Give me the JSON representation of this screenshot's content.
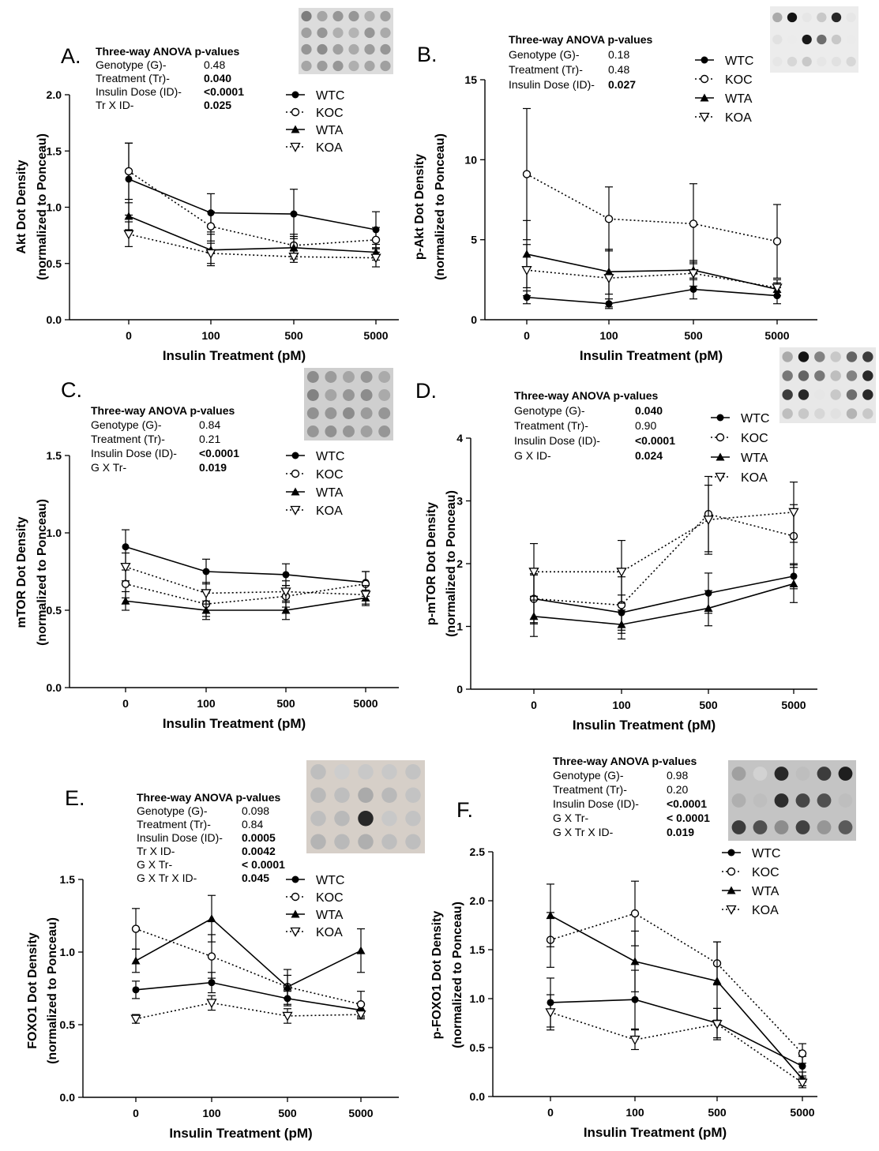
{
  "panels": [
    {
      "letter": "A.",
      "stats": {
        "title": "Three-way ANOVA p-values",
        "rows": [
          {
            "label": "Genotype (G)-",
            "value": "0.48",
            "bold": false
          },
          {
            "label": "Treatment (Tr)-",
            "value": "0.040",
            "bold": true
          },
          {
            "label": "Insulin Dose (ID)-",
            "value": "<0.0001",
            "bold": true
          },
          {
            "label": "Tr X ID-",
            "value": "0.025",
            "bold": true
          }
        ]
      },
      "blot": {
        "style": "light"
      }
    },
    {
      "letter": "B.",
      "stats": {
        "title": "Three-way ANOVA p-values",
        "rows": [
          {
            "label": "Genotype (G)-",
            "value": "0.18",
            "bold": false
          },
          {
            "label": "Treatment (Tr)-",
            "value": "0.48",
            "bold": false
          },
          {
            "label": "Insulin Dose (ID)-",
            "value": "0.027",
            "bold": true
          }
        ]
      },
      "blot": {
        "style": "sparse"
      }
    },
    {
      "letter": "C.",
      "stats": {
        "title": "Three-way ANOVA p-values",
        "rows": [
          {
            "label": "Genotype (G)-",
            "value": "0.84",
            "bold": false
          },
          {
            "label": "Treatment (Tr)-",
            "value": "0.21",
            "bold": false
          },
          {
            "label": "Insulin Dose (ID)-",
            "value": "<0.0001",
            "bold": true
          },
          {
            "label": "G X Tr-",
            "value": "0.019",
            "bold": true
          }
        ]
      },
      "blot": {
        "style": "medium"
      }
    },
    {
      "letter": "D.",
      "stats": {
        "title": "Three-way ANOVA p-values",
        "rows": [
          {
            "label": "Genotype (G)-",
            "value": "0.040",
            "bold": true
          },
          {
            "label": "Treatment (Tr)-",
            "value": "0.90",
            "bold": false
          },
          {
            "label": "Insulin Dose (ID)-",
            "value": "<0.0001",
            "bold": true
          },
          {
            "label": "G X ID-",
            "value": "0.024",
            "bold": true
          }
        ]
      },
      "blot": {
        "style": "dark"
      }
    },
    {
      "letter": "E.",
      "stats": {
        "title": "Three-way ANOVA p-values",
        "rows": [
          {
            "label": "Genotype (G)-",
            "value": "0.098",
            "bold": false
          },
          {
            "label": "Treatment (Tr)-",
            "value": "0.84",
            "bold": false
          },
          {
            "label": "Insulin Dose (ID)-",
            "value": "0.0005",
            "bold": true
          },
          {
            "label": "Tr X ID-",
            "value": "0.0042",
            "bold": true
          },
          {
            "label": "G X Tr-",
            "value": "< 0.0001",
            "bold": true
          },
          {
            "label": "G X Tr X ID-",
            "value": "0.045",
            "bold": true
          }
        ]
      },
      "blot": {
        "style": "pale"
      }
    },
    {
      "letter": "F.",
      "stats": {
        "title": "Three-way ANOVA p-values",
        "rows": [
          {
            "label": "Genotype (G)-",
            "value": "0.98",
            "bold": false
          },
          {
            "label": "Treatment (Tr)-",
            "value": "0.20",
            "bold": false
          },
          {
            "label": "Insulin Dose (ID)-",
            "value": "<0.0001",
            "bold": true
          },
          {
            "label": "G X Tr-",
            "value": "< 0.0001",
            "bold": true
          },
          {
            "label": "G X Tr X ID-",
            "value": "0.019",
            "bold": true
          }
        ]
      },
      "blot": {
        "style": "grey"
      }
    }
  ],
  "chart_data": [
    {
      "type": "line",
      "categories": [
        "0",
        "100",
        "500",
        "5000"
      ],
      "xlabel": "Insulin Treatment (pM)",
      "ylabel": [
        "Akt Dot Density",
        "(normalized to Ponceau)"
      ],
      "ylim": [
        0,
        2.0
      ],
      "yticks": [
        "0.0",
        "0.5",
        "1.0",
        "1.5",
        "2.0"
      ],
      "series": [
        {
          "name": "WTC",
          "marker": "filled-circle",
          "line": "solid",
          "values": [
            1.25,
            0.95,
            0.94,
            0.8
          ],
          "err": [
            0.32,
            0.17,
            0.22,
            0.16
          ]
        },
        {
          "name": "KOC",
          "marker": "open-circle",
          "line": "dotted",
          "values": [
            1.32,
            0.83,
            0.66,
            0.71
          ],
          "err": [
            0.25,
            0.13,
            0.1,
            0.11
          ]
        },
        {
          "name": "WTA",
          "marker": "filled-triangle",
          "line": "solid",
          "values": [
            0.92,
            0.62,
            0.64,
            0.6
          ],
          "err": [
            0.12,
            0.14,
            0.1,
            0.07
          ]
        },
        {
          "name": "KOA",
          "marker": "open-triangle-down",
          "line": "dotted",
          "values": [
            0.76,
            0.59,
            0.56,
            0.55
          ],
          "err": [
            0.11,
            0.09,
            0.05,
            0.08
          ]
        }
      ]
    },
    {
      "type": "line",
      "categories": [
        "0",
        "100",
        "500",
        "5000"
      ],
      "xlabel": "Insulin Treatment (pM)",
      "ylabel": [
        "p-Akt Dot Density",
        "(normalized to Ponceau)"
      ],
      "ylim": [
        0,
        15
      ],
      "yticks": [
        "0",
        "5",
        "10",
        "15"
      ],
      "series": [
        {
          "name": "WTC",
          "marker": "filled-circle",
          "line": "solid",
          "values": [
            1.4,
            1.0,
            1.9,
            1.5
          ],
          "err": [
            0.4,
            0.3,
            0.6,
            0.5
          ]
        },
        {
          "name": "KOC",
          "marker": "open-circle",
          "line": "dotted",
          "values": [
            9.1,
            6.3,
            6.0,
            4.9
          ],
          "err": [
            4.1,
            2.0,
            2.5,
            2.3
          ]
        },
        {
          "name": "WTA",
          "marker": "filled-triangle",
          "line": "solid",
          "values": [
            4.1,
            3.0,
            3.1,
            1.9
          ],
          "err": [
            2.1,
            1.4,
            0.5,
            0.4
          ]
        },
        {
          "name": "KOA",
          "marker": "open-triangle-down",
          "line": "dotted",
          "values": [
            3.1,
            2.6,
            2.9,
            2.0
          ],
          "err": [
            1.6,
            1.8,
            0.8,
            0.5
          ]
        }
      ]
    },
    {
      "type": "line",
      "categories": [
        "0",
        "100",
        "500",
        "5000"
      ],
      "xlabel": "Insulin Treatment (pM)",
      "ylabel": [
        "mTOR Dot Density",
        "(normalized to Ponceau)"
      ],
      "ylim": [
        0,
        1.5
      ],
      "yticks": [
        "0.0",
        "0.5",
        "1.0",
        "1.5"
      ],
      "series": [
        {
          "name": "WTC",
          "marker": "filled-circle",
          "line": "solid",
          "values": [
            0.91,
            0.75,
            0.73,
            0.68
          ],
          "err": [
            0.11,
            0.08,
            0.07,
            0.07
          ]
        },
        {
          "name": "KOC",
          "marker": "open-circle",
          "line": "dotted",
          "values": [
            0.67,
            0.54,
            0.59,
            0.67
          ],
          "err": [
            0.09,
            0.08,
            0.07,
            0.08
          ]
        },
        {
          "name": "WTA",
          "marker": "filled-triangle",
          "line": "solid",
          "values": [
            0.56,
            0.5,
            0.5,
            0.58
          ],
          "err": [
            0.06,
            0.06,
            0.06,
            0.05
          ]
        },
        {
          "name": "KOA",
          "marker": "open-triangle-down",
          "line": "dotted",
          "values": [
            0.78,
            0.61,
            0.62,
            0.6
          ],
          "err": [
            0.09,
            0.07,
            0.07,
            0.06
          ]
        }
      ]
    },
    {
      "type": "line",
      "categories": [
        "0",
        "100",
        "500",
        "5000"
      ],
      "xlabel": "Insulin Treatment (pM)",
      "ylabel": [
        "p-mTOR Dot Density",
        "(normalized to Ponceau)"
      ],
      "ylim": [
        0,
        4
      ],
      "yticks": [
        "0",
        "1",
        "2",
        "3",
        "4"
      ],
      "series": [
        {
          "name": "WTC",
          "marker": "filled-circle",
          "line": "solid",
          "values": [
            1.44,
            1.22,
            1.53,
            1.8
          ],
          "err": [
            0.38,
            0.28,
            0.32,
            0.2
          ]
        },
        {
          "name": "KOC",
          "marker": "open-circle",
          "line": "dotted",
          "values": [
            1.44,
            1.34,
            2.79,
            2.44
          ],
          "err": [
            0.4,
            0.45,
            0.6,
            0.5
          ]
        },
        {
          "name": "WTA",
          "marker": "filled-triangle",
          "line": "solid",
          "values": [
            1.16,
            1.03,
            1.29,
            1.68
          ],
          "err": [
            0.32,
            0.23,
            0.28,
            0.3
          ]
        },
        {
          "name": "KOA",
          "marker": "open-triangle-down",
          "line": "dotted",
          "values": [
            1.87,
            1.87,
            2.7,
            2.82
          ],
          "err": [
            0.45,
            0.5,
            0.55,
            0.48
          ]
        }
      ]
    },
    {
      "type": "line",
      "categories": [
        "0",
        "100",
        "500",
        "5000"
      ],
      "xlabel": "Insulin Treatment (pM)",
      "ylabel": [
        "FOXO1 Dot Density",
        "(normalized to Ponceau)"
      ],
      "ylim": [
        0,
        1.5
      ],
      "yticks": [
        "0.0",
        "0.5",
        "1.0",
        "1.5"
      ],
      "series": [
        {
          "name": "WTC",
          "marker": "filled-circle",
          "line": "solid",
          "values": [
            0.74,
            0.79,
            0.68,
            0.6
          ],
          "err": [
            0.06,
            0.07,
            0.05,
            0.04
          ]
        },
        {
          "name": "KOC",
          "marker": "open-circle",
          "line": "dotted",
          "values": [
            1.16,
            0.97,
            0.76,
            0.64
          ],
          "err": [
            0.14,
            0.15,
            0.08,
            0.09
          ]
        },
        {
          "name": "WTA",
          "marker": "filled-triangle",
          "line": "solid",
          "values": [
            0.94,
            1.23,
            0.76,
            1.01
          ],
          "err": [
            0.08,
            0.16,
            0.12,
            0.15
          ]
        },
        {
          "name": "KOA",
          "marker": "open-triangle-down",
          "line": "dotted",
          "values": [
            0.54,
            0.65,
            0.56,
            0.57
          ],
          "err": [
            0.03,
            0.05,
            0.05,
            0.03
          ]
        }
      ]
    },
    {
      "type": "line",
      "categories": [
        "0",
        "100",
        "500",
        "5000"
      ],
      "xlabel": "Insulin Treatment (pM)",
      "ylabel": [
        "p-FOXO1 Dot Density",
        "(normalized to Ponceau)"
      ],
      "ylim": [
        0,
        2.5
      ],
      "yticks": [
        "0.0",
        "0.5",
        "1.0",
        "1.5",
        "2.0",
        "2.5"
      ],
      "series": [
        {
          "name": "WTC",
          "marker": "filled-circle",
          "line": "solid",
          "values": [
            0.96,
            0.99,
            0.75,
            0.31
          ],
          "err": [
            0.25,
            0.3,
            0.15,
            0.1
          ]
        },
        {
          "name": "KOC",
          "marker": "open-circle",
          "line": "dotted",
          "values": [
            1.6,
            1.87,
            1.36,
            0.44
          ],
          "err": [
            0.28,
            0.33,
            0.22,
            0.1
          ]
        },
        {
          "name": "WTA",
          "marker": "filled-triangle",
          "line": "solid",
          "values": [
            1.85,
            1.38,
            1.18,
            0.18
          ],
          "err": [
            0.32,
            0.31,
            0.4,
            0.07
          ]
        },
        {
          "name": "KOA",
          "marker": "open-triangle-down",
          "line": "dotted",
          "values": [
            0.86,
            0.58,
            0.74,
            0.14
          ],
          "err": [
            0.18,
            0.1,
            0.16,
            0.05
          ]
        }
      ]
    }
  ]
}
